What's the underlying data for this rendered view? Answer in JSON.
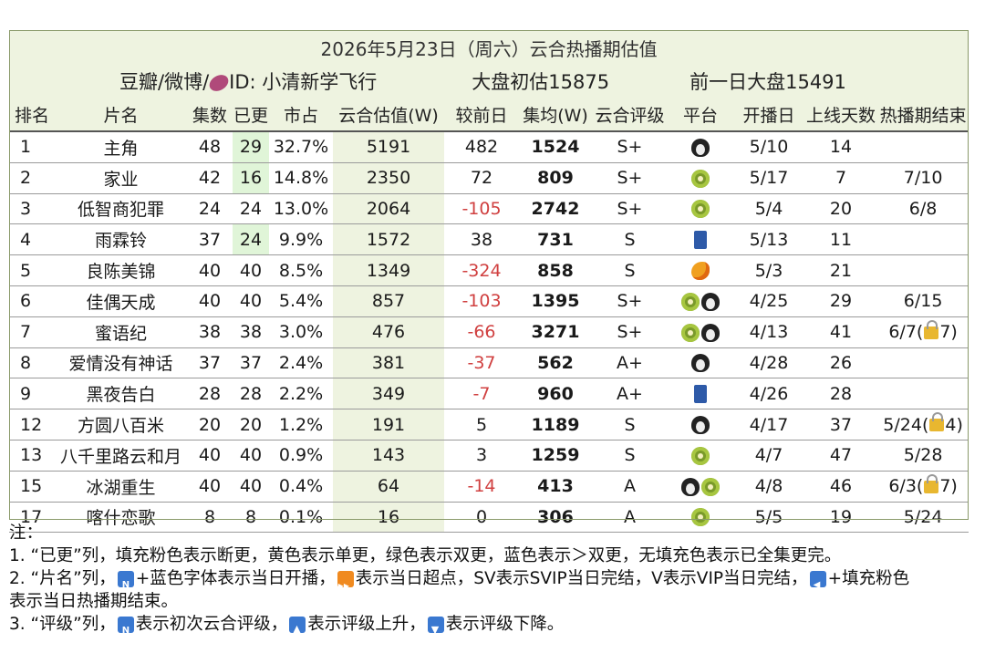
{
  "header": {
    "title": "2026年5月23日（周六）云合热播期估值",
    "source": "豆瓣/微博/",
    "id_label": "ID: 小清新学飞行",
    "market_estimate": "大盘初估15875",
    "prev_market": "前一日大盘15491"
  },
  "columns": [
    "排名",
    "片名",
    "集数",
    "已更",
    "市占",
    "云合估值(W)",
    "较前日",
    "集均(W)",
    "云合评级",
    "平台",
    "开播日",
    "上线天数",
    "热播期结束"
  ],
  "rows": [
    {
      "rank": "1",
      "title": "主角",
      "episodes": "48",
      "aired": "29",
      "share": "32.7%",
      "value": "5191",
      "delta": "482",
      "avg": "1524",
      "rating": "S+",
      "platforms": [
        "penguin"
      ],
      "start": "5/10",
      "days": "14",
      "end": "",
      "aired_hl": true,
      "neg": false
    },
    {
      "rank": "2",
      "title": "家业",
      "episodes": "42",
      "aired": "16",
      "share": "14.8%",
      "value": "2350",
      "delta": "72",
      "avg": "809",
      "rating": "S+",
      "platforms": [
        "kiwi"
      ],
      "start": "5/17",
      "days": "7",
      "end": "7/10",
      "aired_hl": true,
      "neg": false
    },
    {
      "rank": "3",
      "title": "低智商犯罪",
      "episodes": "24",
      "aired": "24",
      "share": "13.0%",
      "value": "2064",
      "delta": "-105",
      "avg": "2742",
      "rating": "S+",
      "platforms": [
        "kiwi"
      ],
      "start": "5/4",
      "days": "20",
      "end": "6/8",
      "aired_hl": false,
      "neg": true
    },
    {
      "rank": "4",
      "title": "雨霖铃",
      "episodes": "37",
      "aired": "24",
      "share": "9.9%",
      "value": "1572",
      "delta": "38",
      "avg": "731",
      "rating": "S",
      "platforms": [
        "jeans"
      ],
      "start": "5/13",
      "days": "11",
      "end": "",
      "aired_hl": true,
      "neg": false
    },
    {
      "rank": "5",
      "title": "良陈美锦",
      "episodes": "40",
      "aired": "40",
      "share": "8.5%",
      "value": "1349",
      "delta": "-324",
      "avg": "858",
      "rating": "S",
      "platforms": [
        "mango"
      ],
      "start": "5/3",
      "days": "21",
      "end": "",
      "aired_hl": false,
      "neg": true
    },
    {
      "rank": "6",
      "title": "佳偶天成",
      "episodes": "40",
      "aired": "40",
      "share": "5.4%",
      "value": "857",
      "delta": "-103",
      "avg": "1395",
      "rating": "S+",
      "platforms": [
        "kiwi",
        "penguin"
      ],
      "start": "4/25",
      "days": "29",
      "end": "6/15",
      "aired_hl": false,
      "neg": true
    },
    {
      "rank": "7",
      "title": "蜜语纪",
      "episodes": "38",
      "aired": "38",
      "share": "3.0%",
      "value": "476",
      "delta": "-66",
      "avg": "3271",
      "rating": "S+",
      "platforms": [
        "kiwi",
        "penguin"
      ],
      "start": "4/13",
      "days": "41",
      "end": "6/7(",
      "end_lock": "7)",
      "aired_hl": false,
      "neg": true
    },
    {
      "rank": "8",
      "title": "爱情没有神话",
      "episodes": "37",
      "aired": "37",
      "share": "2.4%",
      "value": "381",
      "delta": "-37",
      "avg": "562",
      "rating": "A+",
      "platforms": [
        "penguin"
      ],
      "start": "4/28",
      "days": "26",
      "end": "",
      "aired_hl": false,
      "neg": true
    },
    {
      "rank": "9",
      "title": "黑夜告白",
      "episodes": "28",
      "aired": "28",
      "share": "2.2%",
      "value": "349",
      "delta": "-7",
      "avg": "960",
      "rating": "A+",
      "platforms": [
        "jeans"
      ],
      "start": "4/26",
      "days": "28",
      "end": "",
      "aired_hl": false,
      "neg": true
    },
    {
      "rank": "12",
      "title": "方圆八百米",
      "episodes": "20",
      "aired": "20",
      "share": "1.2%",
      "value": "191",
      "delta": "5",
      "avg": "1189",
      "rating": "S",
      "platforms": [
        "penguin"
      ],
      "start": "4/17",
      "days": "37",
      "end": "5/24(",
      "end_lock": "4)",
      "aired_hl": false,
      "neg": false
    },
    {
      "rank": "13",
      "title": "八千里路云和月",
      "episodes": "40",
      "aired": "40",
      "share": "0.9%",
      "value": "143",
      "delta": "3",
      "avg": "1259",
      "rating": "S",
      "platforms": [
        "kiwi"
      ],
      "start": "4/7",
      "days": "47",
      "end": "5/28",
      "aired_hl": false,
      "neg": false
    },
    {
      "rank": "15",
      "title": "冰湖重生",
      "episodes": "40",
      "aired": "40",
      "share": "0.4%",
      "value": "64",
      "delta": "-14",
      "avg": "413",
      "rating": "A",
      "platforms": [
        "penguin",
        "kiwi"
      ],
      "start": "4/8",
      "days": "46",
      "end": "6/3(",
      "end_lock": "7)",
      "aired_hl": false,
      "neg": true
    },
    {
      "rank": "17",
      "title": "喀什恋歌",
      "episodes": "8",
      "aired": "8",
      "share": "0.1%",
      "value": "16",
      "delta": "0",
      "avg": "306",
      "rating": "A",
      "platforms": [
        "kiwi"
      ],
      "start": "5/5",
      "days": "19",
      "end": "5/24",
      "aired_hl": false,
      "neg": false
    }
  ],
  "notes": {
    "heading": "注：",
    "n1": "1. “已更”列，填充粉色表示断更，黄色表示单更，绿色表示双更，蓝色表示＞双更，无填充色表示已全集更完。",
    "n2a": "2. “片名”列，",
    "n2b": "+蓝色字体表示当日开播，",
    "n2c": "表示当日超点，SV表示SVIP当日完结，V表示VIP当日完结，",
    "n2d": "+填充粉色",
    "n2e": "表示当日热播期结束。",
    "n3a": "3. “评级”列，",
    "n3b": "表示初次云合评级，",
    "n3c": "表示评级上升，",
    "n3d": "表示评级下降。"
  }
}
